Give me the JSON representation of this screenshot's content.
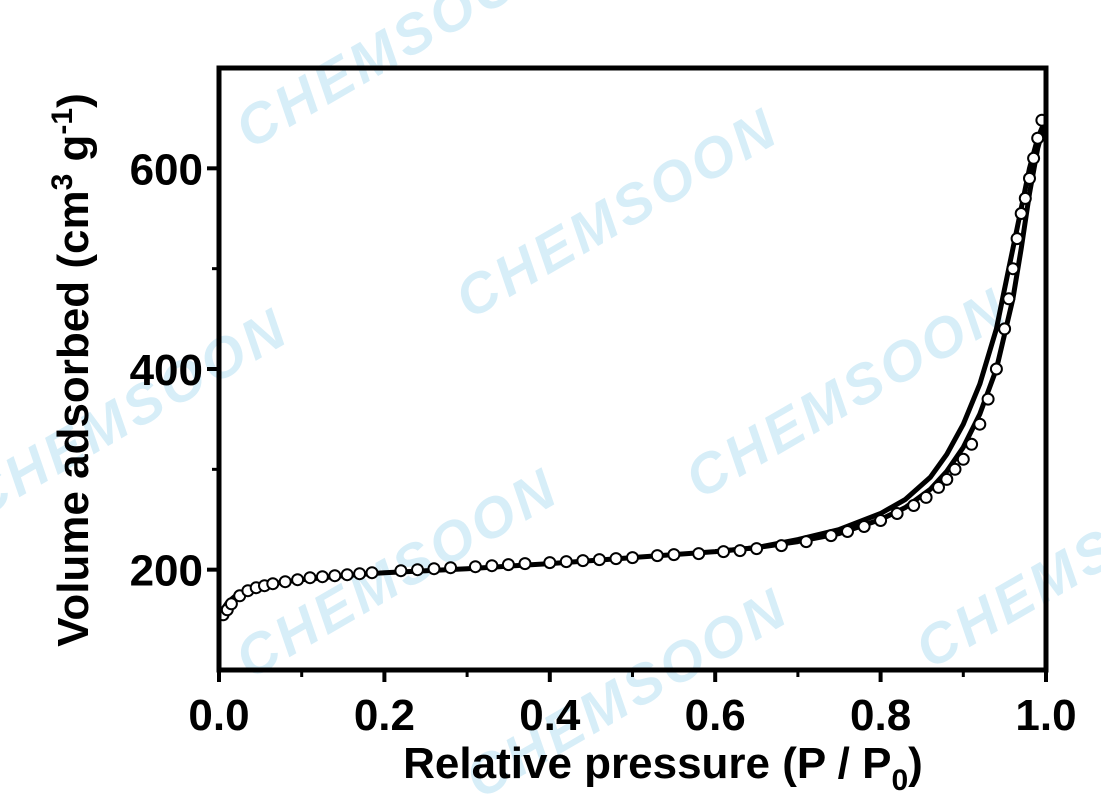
{
  "chart_data": {
    "type": "line",
    "watermark_text": "CHEMSOON",
    "xlabel_main": "Relative pressure (P / P",
    "xlabel_sub": "0",
    "xlabel_end": ")",
    "ylabel_main": "Volume adsorbed (cm",
    "ylabel_sup1": "3",
    "ylabel_mid": " g",
    "ylabel_sup2": "-1",
    "ylabel_end": ")",
    "xlim": [
      0.0,
      1.0
    ],
    "ylim": [
      100,
      700
    ],
    "x_ticks": [
      "0.0",
      "0.2",
      "0.4",
      "0.6",
      "0.8",
      "1.0"
    ],
    "y_ticks": [
      "200",
      "400",
      "600"
    ],
    "colors": {
      "line": "#000000",
      "marker_fill": "#ffffff",
      "watermark": "#d7eef8"
    },
    "series": [
      {
        "style": "line",
        "x": [
          0.0,
          0.01,
          0.02,
          0.04,
          0.06,
          0.08,
          0.1,
          0.15,
          0.2,
          0.3,
          0.4,
          0.5,
          0.6,
          0.65,
          0.7,
          0.75,
          0.8,
          0.83,
          0.86,
          0.88,
          0.9,
          0.92,
          0.94,
          0.96,
          0.97,
          0.98,
          0.99,
          1.0
        ],
        "y": [
          155,
          167,
          174,
          181,
          185,
          188,
          190,
          194,
          197,
          201,
          206,
          212,
          218,
          222,
          228,
          236,
          250,
          262,
          280,
          298,
          322,
          355,
          400,
          470,
          520,
          575,
          620,
          650
        ]
      },
      {
        "style": "line",
        "x": [
          0.6,
          0.65,
          0.7,
          0.75,
          0.8,
          0.83,
          0.86,
          0.88,
          0.9,
          0.92,
          0.94,
          0.95,
          0.96,
          0.97,
          0.98,
          0.99,
          1.0
        ],
        "y": [
          218,
          222,
          230,
          240,
          256,
          270,
          292,
          315,
          345,
          385,
          440,
          480,
          520,
          560,
          600,
          630,
          650
        ]
      },
      {
        "style": "markers",
        "x": [
          0.005,
          0.01,
          0.015,
          0.025,
          0.035,
          0.045,
          0.055,
          0.065,
          0.08,
          0.095,
          0.11,
          0.125,
          0.14,
          0.155,
          0.17,
          0.185,
          0.22,
          0.24,
          0.26,
          0.28,
          0.31,
          0.33,
          0.35,
          0.37,
          0.4,
          0.42,
          0.44,
          0.46,
          0.48,
          0.5,
          0.53,
          0.55,
          0.58,
          0.61,
          0.63,
          0.65,
          0.68,
          0.71,
          0.74,
          0.76,
          0.78,
          0.8,
          0.82,
          0.84,
          0.855,
          0.87,
          0.88,
          0.89,
          0.9,
          0.91,
          0.92,
          0.93,
          0.94,
          0.95,
          0.955,
          0.96,
          0.965,
          0.97,
          0.975,
          0.98,
          0.985,
          0.99,
          0.995
        ],
        "y": [
          155,
          160,
          166,
          174,
          179,
          182,
          184,
          186,
          188,
          190,
          192,
          193,
          194,
          195,
          196,
          197,
          199,
          200,
          201,
          202,
          203,
          204,
          205,
          206,
          207,
          208,
          209,
          210,
          211,
          212,
          214,
          215,
          216,
          218,
          219,
          221,
          224,
          228,
          234,
          238,
          243,
          249,
          256,
          264,
          272,
          282,
          290,
          300,
          310,
          325,
          345,
          370,
          400,
          440,
          470,
          500,
          530,
          555,
          570,
          590,
          610,
          630,
          648
        ]
      }
    ]
  }
}
